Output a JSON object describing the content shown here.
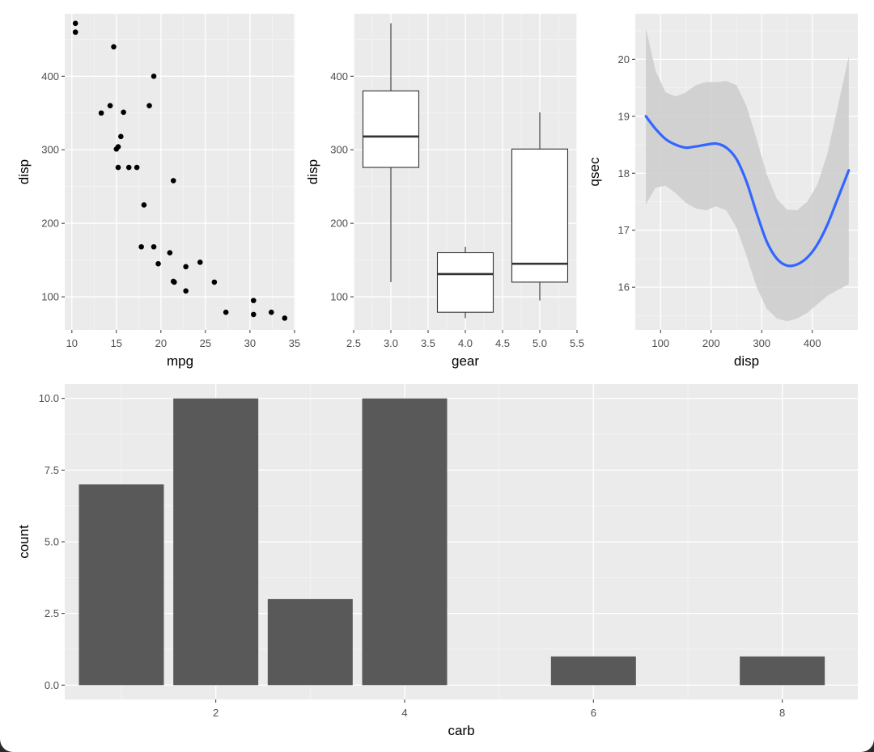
{
  "colors": {
    "panel_background": "#ebebeb",
    "grid_major": "#ffffff",
    "grid_minor": "#f5f5f5",
    "tick_text": "#4d4d4d",
    "point": "#000000",
    "box_fill": "#ffffff",
    "box_stroke": "#333333",
    "smooth_line": "#3366ff",
    "ribbon": "#cccccc",
    "bar_fill": "#595959"
  },
  "chart_data": [
    {
      "type": "scatter",
      "xlabel": "mpg",
      "ylabel": "disp",
      "xlim": [
        9.2,
        35.1
      ],
      "ylim": [
        55,
        485
      ],
      "x_ticks": [
        10,
        15,
        20,
        25,
        30,
        35
      ],
      "x_tick_labels": [
        "10",
        "15",
        "20",
        "25",
        "30",
        "35"
      ],
      "y_ticks": [
        100,
        200,
        300,
        400
      ],
      "y_tick_labels": [
        "100",
        "200",
        "300",
        "400"
      ],
      "grid": true,
      "points": [
        {
          "x": 10.4,
          "y": 472
        },
        {
          "x": 10.4,
          "y": 460
        },
        {
          "x": 14.7,
          "y": 440
        },
        {
          "x": 19.2,
          "y": 400
        },
        {
          "x": 14.3,
          "y": 360
        },
        {
          "x": 18.7,
          "y": 360
        },
        {
          "x": 13.3,
          "y": 350
        },
        {
          "x": 15.8,
          "y": 351
        },
        {
          "x": 15.5,
          "y": 318
        },
        {
          "x": 15.2,
          "y": 304
        },
        {
          "x": 15.0,
          "y": 301
        },
        {
          "x": 21.4,
          "y": 258
        },
        {
          "x": 15.2,
          "y": 276
        },
        {
          "x": 16.4,
          "y": 276
        },
        {
          "x": 17.3,
          "y": 276
        },
        {
          "x": 18.1,
          "y": 225
        },
        {
          "x": 17.8,
          "y": 168
        },
        {
          "x": 19.2,
          "y": 168
        },
        {
          "x": 21.0,
          "y": 160
        },
        {
          "x": 24.4,
          "y": 147
        },
        {
          "x": 19.7,
          "y": 145
        },
        {
          "x": 22.8,
          "y": 141
        },
        {
          "x": 21.5,
          "y": 120
        },
        {
          "x": 21.4,
          "y": 121
        },
        {
          "x": 26.0,
          "y": 120
        },
        {
          "x": 22.8,
          "y": 108
        },
        {
          "x": 30.4,
          "y": 95
        },
        {
          "x": 27.3,
          "y": 79
        },
        {
          "x": 32.4,
          "y": 79
        },
        {
          "x": 30.4,
          "y": 76
        },
        {
          "x": 33.9,
          "y": 71
        }
      ]
    },
    {
      "type": "boxplot",
      "xlabel": "gear",
      "ylabel": "disp",
      "xlim": [
        2.5,
        5.5
      ],
      "ylim": [
        55,
        485
      ],
      "x_ticks": [
        2.5,
        3.0,
        3.5,
        4.0,
        4.5,
        5.0,
        5.5
      ],
      "x_tick_labels": [
        "2.5",
        "3.0",
        "3.5",
        "4.0",
        "4.5",
        "5.0",
        "5.5"
      ],
      "y_ticks": [
        100,
        200,
        300,
        400
      ],
      "y_tick_labels": [
        "100",
        "200",
        "300",
        "400"
      ],
      "grid": true,
      "box_width": 0.75,
      "boxes": [
        {
          "x": 3,
          "lower_whisker": 120,
          "q1": 276,
          "median": 318,
          "q3": 380,
          "upper_whisker": 472
        },
        {
          "x": 4,
          "lower_whisker": 71,
          "q1": 79,
          "median": 131,
          "q3": 160,
          "upper_whisker": 168
        },
        {
          "x": 5,
          "lower_whisker": 95,
          "q1": 120,
          "median": 145,
          "q3": 301,
          "upper_whisker": 351
        }
      ]
    },
    {
      "type": "line",
      "method": "smooth",
      "xlabel": "disp",
      "ylabel": "qsec",
      "xlim": [
        50,
        490
      ],
      "ylim": [
        15.25,
        20.8
      ],
      "x_ticks": [
        100,
        200,
        300,
        400
      ],
      "x_tick_labels": [
        "100",
        "200",
        "300",
        "400"
      ],
      "y_ticks": [
        16,
        17,
        18,
        19,
        20
      ],
      "y_tick_labels": [
        "16",
        "17",
        "18",
        "19",
        "20"
      ],
      "grid": true,
      "x": [
        71,
        90,
        110,
        130,
        150,
        170,
        190,
        210,
        230,
        250,
        270,
        290,
        310,
        330,
        350,
        370,
        390,
        410,
        430,
        450,
        472
      ],
      "fit": [
        19.0,
        18.78,
        18.6,
        18.5,
        18.45,
        18.47,
        18.5,
        18.52,
        18.45,
        18.25,
        17.85,
        17.3,
        16.8,
        16.5,
        16.38,
        16.4,
        16.52,
        16.75,
        17.1,
        17.55,
        18.05
      ],
      "ci_lower": [
        17.45,
        17.75,
        17.78,
        17.65,
        17.48,
        17.38,
        17.35,
        17.42,
        17.35,
        17.05,
        16.55,
        16.0,
        15.62,
        15.45,
        15.4,
        15.45,
        15.55,
        15.7,
        15.85,
        15.95,
        16.05
      ],
      "ci_upper": [
        20.55,
        19.8,
        19.42,
        19.35,
        19.42,
        19.55,
        19.6,
        19.6,
        19.62,
        19.55,
        19.18,
        18.6,
        17.98,
        17.55,
        17.36,
        17.35,
        17.5,
        17.8,
        18.35,
        19.15,
        20.05
      ]
    },
    {
      "type": "bar",
      "xlabel": "carb",
      "ylabel": "count",
      "xlim": [
        0.4,
        8.8
      ],
      "ylim": [
        -0.5,
        10.5
      ],
      "x_ticks": [
        2,
        4,
        6,
        8
      ],
      "x_tick_labels": [
        "2",
        "4",
        "6",
        "8"
      ],
      "y_ticks": [
        0,
        2.5,
        5,
        7.5,
        10
      ],
      "y_tick_labels": [
        "0.0",
        "2.5",
        "5.0",
        "7.5",
        "10.0"
      ],
      "grid": true,
      "bar_width": 0.9,
      "categories": [
        1,
        2,
        3,
        4,
        6,
        8
      ],
      "values": [
        7,
        10,
        3,
        10,
        1,
        1
      ]
    }
  ]
}
